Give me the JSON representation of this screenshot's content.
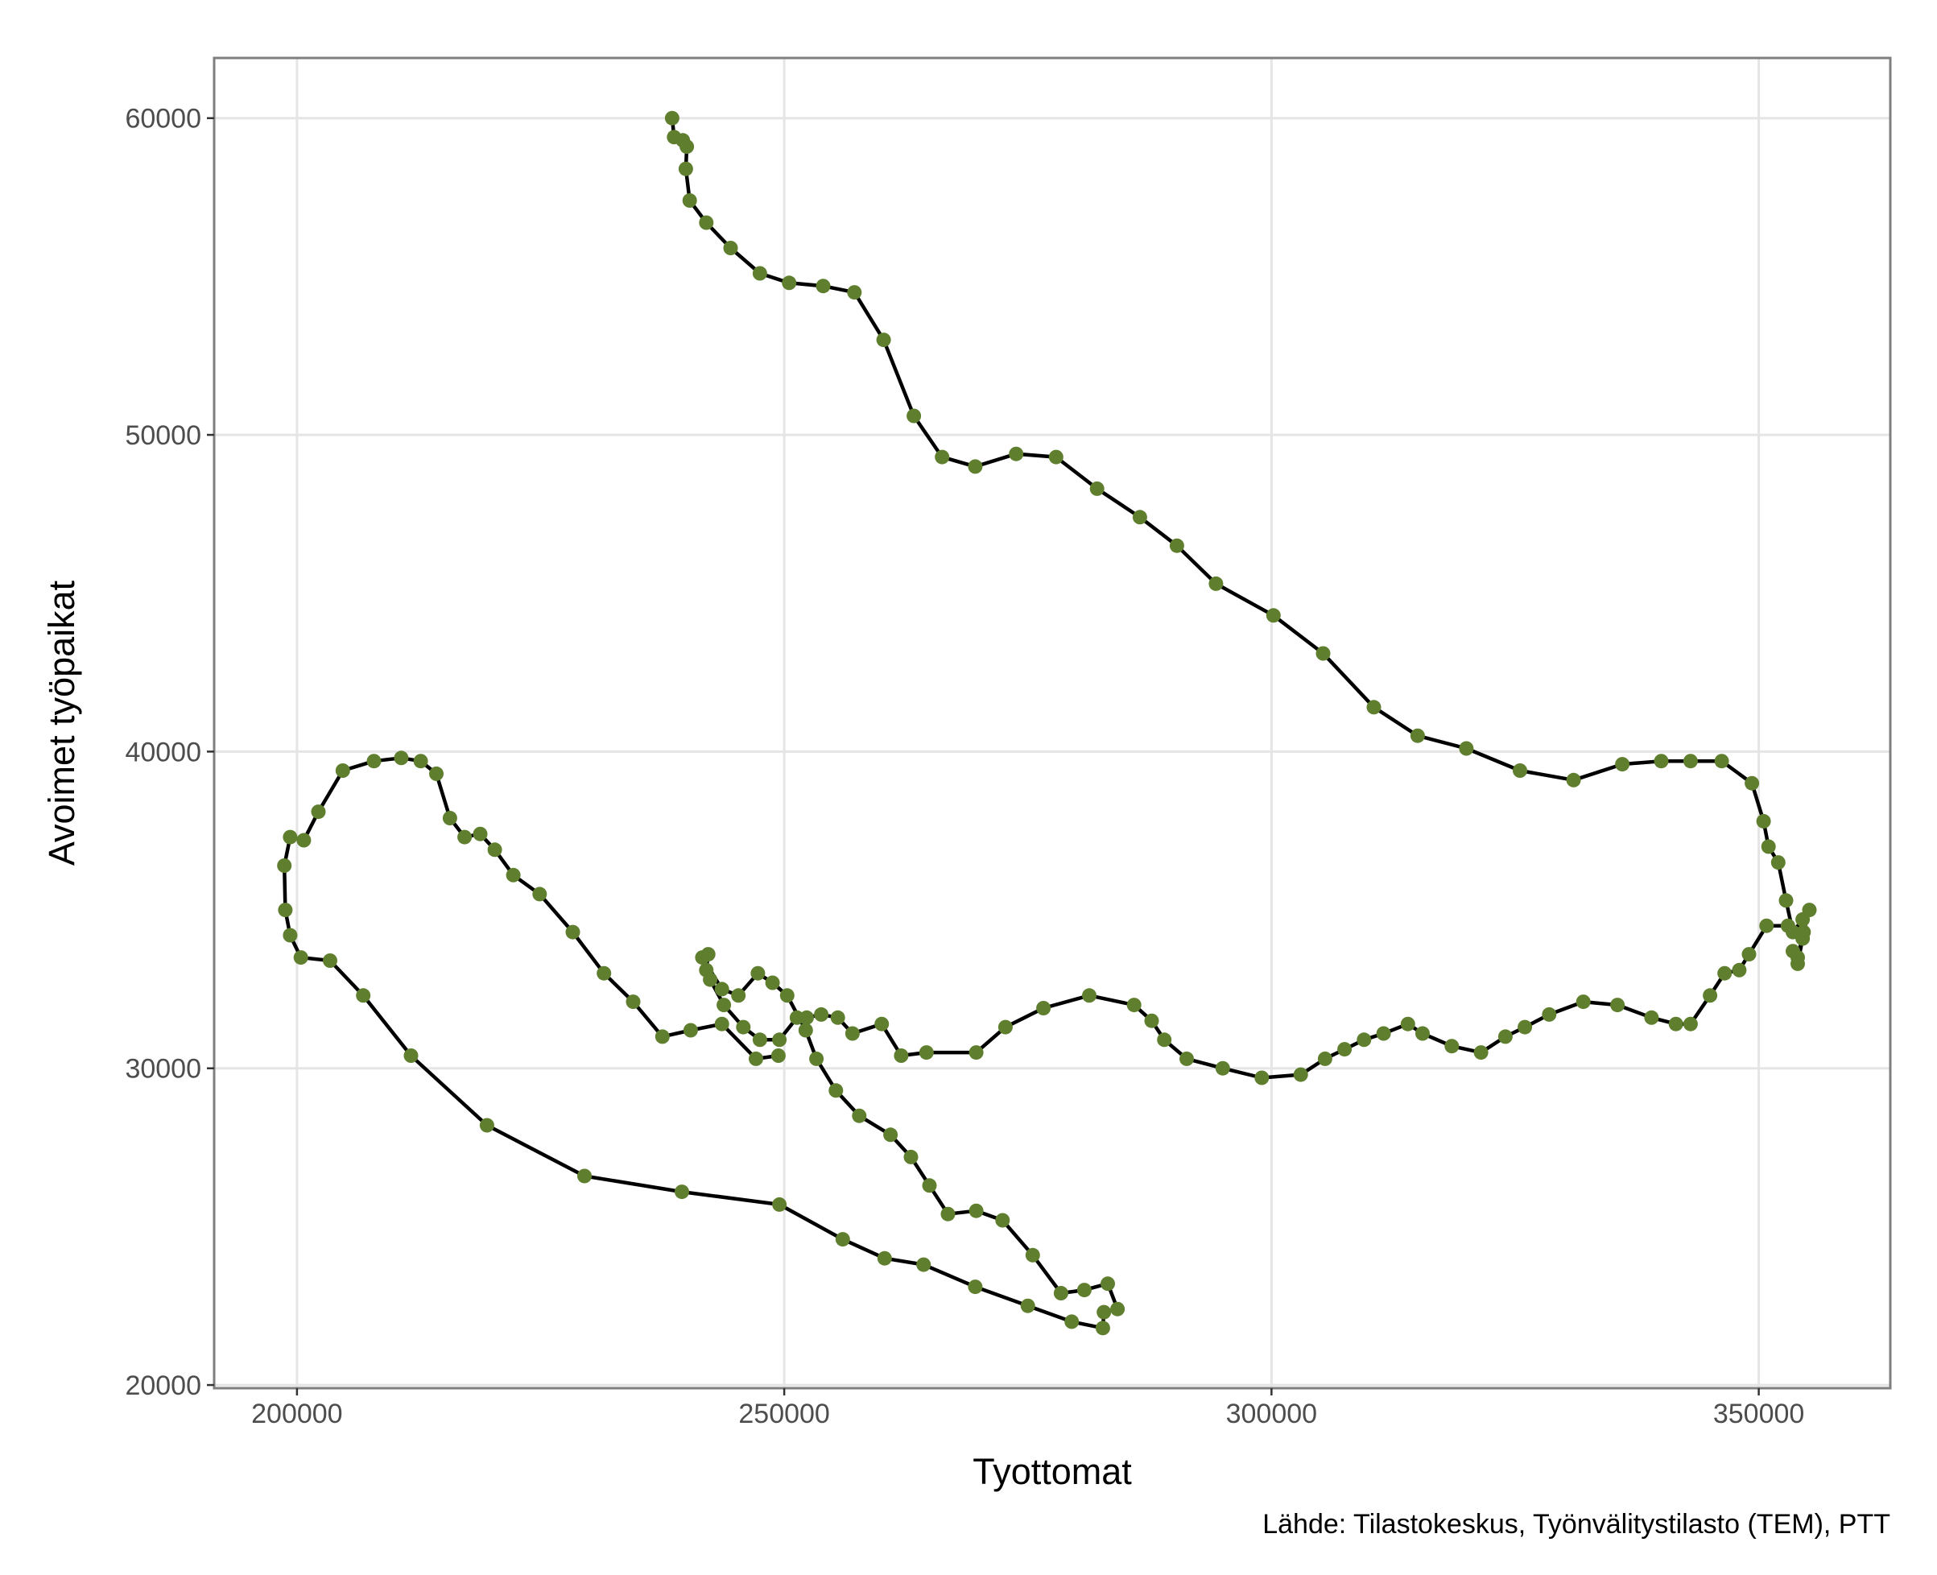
{
  "chart_data": {
    "type": "scatter",
    "title": "",
    "xlabel": "Tyottomat",
    "ylabel": "Avoimet työpaikat",
    "caption": "Lähde: Tilastokeskus, Työnvälitystilasto (TEM), PTT",
    "xlim": [
      191500,
      363500
    ],
    "ylim": [
      19900,
      61900
    ],
    "x_ticks": [
      200000,
      250000,
      300000,
      350000
    ],
    "y_ticks": [
      20000,
      30000,
      40000,
      50000,
      60000
    ],
    "grid": true,
    "legend": "none",
    "colors": {
      "point": "#5f7f2f",
      "line": "#000000",
      "grid": "#e5e5e5",
      "frame": "#7f7f7f"
    },
    "series": [
      {
        "x": [
          238500,
          238700,
          239600,
          240000,
          239900,
          240300,
          242000,
          244500,
          247500,
          250500,
          254000,
          257200,
          260200,
          263300,
          266200,
          269600,
          273800,
          277900,
          282100,
          286500,
          290300,
          294300,
          300200,
          305300,
          310500,
          315000,
          320000,
          325500,
          331000,
          336000,
          340000,
          343000,
          346200,
          349300,
          350500,
          351000,
          352000,
          352800,
          353500,
          354500,
          355200,
          354600,
          354000,
          353500,
          354000,
          354500,
          353000,
          350800,
          349000,
          348000,
          346500,
          345000,
          343000,
          341500,
          339000,
          335500,
          332000,
          328500,
          326000,
          324000,
          321500,
          318500,
          315500,
          314000,
          311500,
          309500,
          307500,
          305500,
          303000,
          299000,
          295000,
          291300,
          289000,
          287700,
          285900,
          281300,
          276600,
          272700,
          269700,
          264600,
          262000,
          260000,
          257000,
          255500,
          253800,
          252300,
          251300,
          249500,
          247500,
          245800,
          243800,
          242400,
          242000,
          242200,
          241600,
          243600,
          245300,
          247300,
          248800,
          250300,
          252200,
          253300,
          255300,
          257700,
          260900,
          263000,
          264900,
          266800,
          269700,
          272400,
          275500,
          278400,
          280800,
          283200,
          284200,
          282800,
          282700,
          279500,
          275000,
          269600,
          264300,
          260300,
          256000,
          249500,
          239500,
          229500,
          219500,
          211700,
          206800,
          203400,
          200400,
          199300,
          198800,
          198700,
          199300,
          200700,
          202200,
          204700,
          207900,
          210700,
          212700,
          214300,
          215700,
          217200,
          218800,
          220300,
          222200,
          224900,
          228300,
          231500,
          234500,
          237500,
          240400,
          243600,
          247100,
          249400,
          251600,
          255400,
          258500,
          262200,
          265500
        ]
      }
    ]
  }
}
